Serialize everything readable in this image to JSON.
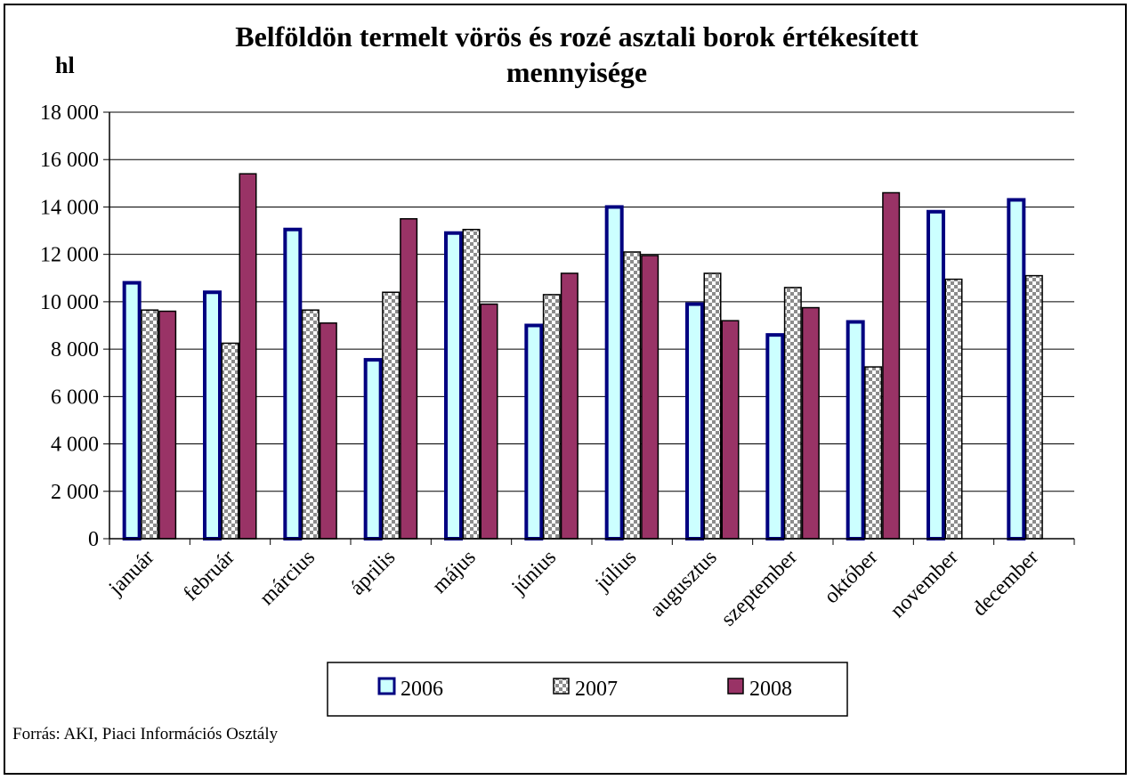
{
  "chart_data": {
    "type": "bar",
    "title_lines": [
      "Belföldön termelt vörös és rozé asztali borok értékesített",
      "mennyisége"
    ],
    "ylabel": "hl",
    "xlabel": "",
    "ylim": [
      0,
      18000
    ],
    "y_ticks": [
      0,
      2000,
      4000,
      6000,
      8000,
      10000,
      12000,
      14000,
      16000,
      18000
    ],
    "y_tick_labels": [
      "0",
      "2 000",
      "4 000",
      "6 000",
      "8 000",
      "10 000",
      "12 000",
      "14 000",
      "16 000",
      "18 000"
    ],
    "grid": true,
    "legend_position": "bottom",
    "categories": [
      "január",
      "február",
      "március",
      "április",
      "május",
      "június",
      "július",
      "augusztus",
      "szeptember",
      "október",
      "november",
      "december"
    ],
    "series": [
      {
        "name": "2006",
        "fill": "#ccffff",
        "stroke": "#000080",
        "pattern": "solid",
        "values": [
          10800,
          10400,
          13050,
          7550,
          12900,
          9000,
          14000,
          9900,
          8600,
          9150,
          13800,
          14300
        ]
      },
      {
        "name": "2007",
        "fill": "#ffffff",
        "stroke": "#000000",
        "pattern": "checker",
        "values": [
          9650,
          8250,
          9650,
          10400,
          13050,
          10300,
          12100,
          11200,
          10600,
          7250,
          10950,
          11100
        ]
      },
      {
        "name": "2008",
        "fill": "#993366",
        "stroke": "#000000",
        "pattern": "solid",
        "values": [
          9600,
          15400,
          9100,
          13500,
          9900,
          11200,
          11950,
          9200,
          9750,
          14600,
          null,
          null
        ]
      }
    ]
  },
  "source_note": "Forrás: AKI, Piaci Információs Osztály"
}
